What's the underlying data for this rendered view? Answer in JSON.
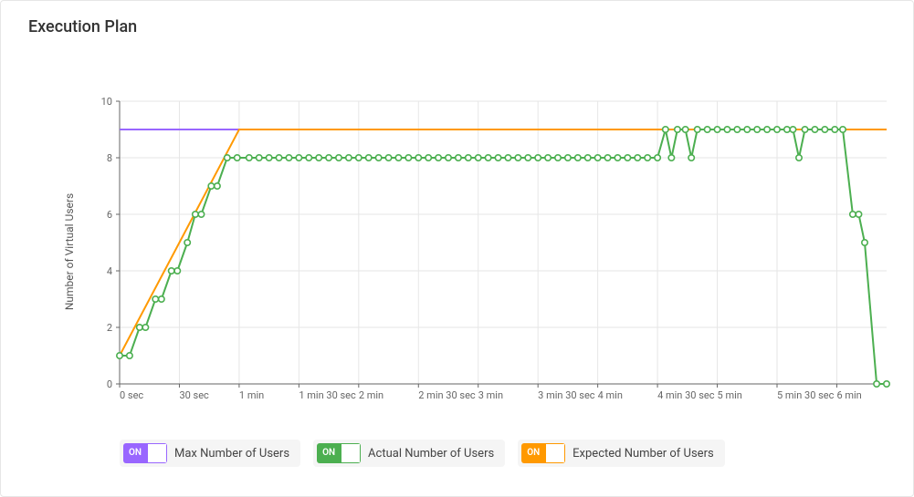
{
  "title": "Execution Plan",
  "ylabel": "Number of Virtual Users",
  "chart": {
    "type": "line",
    "background_color": "#ffffff",
    "grid_color": "#e6e6e6",
    "axis_color": "#666666",
    "tick_fontsize": 11,
    "label_fontsize": 12,
    "x_max_seconds": 385,
    "xticks": [
      {
        "sec": 0,
        "label": "0 sec"
      },
      {
        "sec": 30,
        "label": "30 sec"
      },
      {
        "sec": 60,
        "label": "1 min"
      },
      {
        "sec": 90,
        "label": "1 min 30 sec"
      },
      {
        "sec": 120,
        "label": "2 min"
      },
      {
        "sec": 150,
        "label": "2 min 30 sec"
      },
      {
        "sec": 180,
        "label": "3 min"
      },
      {
        "sec": 210,
        "label": "3 min 30 sec"
      },
      {
        "sec": 240,
        "label": "4 min"
      },
      {
        "sec": 270,
        "label": "4 min 30 sec"
      },
      {
        "sec": 300,
        "label": "5 min"
      },
      {
        "sec": 330,
        "label": "5 min 30 sec"
      },
      {
        "sec": 360,
        "label": "6 min"
      }
    ],
    "ylim": [
      0,
      10
    ],
    "yticks": [
      0,
      2,
      4,
      6,
      8,
      10
    ],
    "series": {
      "max": {
        "label": "Max Number of Users",
        "color": "#9966ff",
        "line_width": 2,
        "markers": false,
        "points": [
          {
            "x": 0,
            "y": 9
          },
          {
            "x": 385,
            "y": 9
          }
        ]
      },
      "expected": {
        "label": "Expected Number of Users",
        "color": "#ff9900",
        "line_width": 2,
        "markers": false,
        "points": [
          {
            "x": 0,
            "y": 1
          },
          {
            "x": 60,
            "y": 9
          },
          {
            "x": 385,
            "y": 9
          }
        ]
      },
      "actual": {
        "label": "Actual Number of Users",
        "color": "#4caf50",
        "line_width": 2,
        "markers": true,
        "marker_radius": 3.2,
        "marker_fill": "#ffffff",
        "points": [
          {
            "x": 0,
            "y": 1
          },
          {
            "x": 5,
            "y": 1
          },
          {
            "x": 10,
            "y": 2
          },
          {
            "x": 13,
            "y": 2
          },
          {
            "x": 18,
            "y": 3
          },
          {
            "x": 21,
            "y": 3
          },
          {
            "x": 26,
            "y": 4
          },
          {
            "x": 29,
            "y": 4
          },
          {
            "x": 34,
            "y": 5
          },
          {
            "x": 38,
            "y": 6
          },
          {
            "x": 41,
            "y": 6
          },
          {
            "x": 46,
            "y": 7
          },
          {
            "x": 49,
            "y": 7
          },
          {
            "x": 54,
            "y": 8
          },
          {
            "x": 59,
            "y": 8
          },
          {
            "x": 65,
            "y": 8
          },
          {
            "x": 70,
            "y": 8
          },
          {
            "x": 75,
            "y": 8
          },
          {
            "x": 80,
            "y": 8
          },
          {
            "x": 85,
            "y": 8
          },
          {
            "x": 90,
            "y": 8
          },
          {
            "x": 95,
            "y": 8
          },
          {
            "x": 100,
            "y": 8
          },
          {
            "x": 105,
            "y": 8
          },
          {
            "x": 110,
            "y": 8
          },
          {
            "x": 115,
            "y": 8
          },
          {
            "x": 120,
            "y": 8
          },
          {
            "x": 125,
            "y": 8
          },
          {
            "x": 130,
            "y": 8
          },
          {
            "x": 135,
            "y": 8
          },
          {
            "x": 140,
            "y": 8
          },
          {
            "x": 145,
            "y": 8
          },
          {
            "x": 150,
            "y": 8
          },
          {
            "x": 155,
            "y": 8
          },
          {
            "x": 160,
            "y": 8
          },
          {
            "x": 165,
            "y": 8
          },
          {
            "x": 170,
            "y": 8
          },
          {
            "x": 175,
            "y": 8
          },
          {
            "x": 180,
            "y": 8
          },
          {
            "x": 185,
            "y": 8
          },
          {
            "x": 190,
            "y": 8
          },
          {
            "x": 195,
            "y": 8
          },
          {
            "x": 200,
            "y": 8
          },
          {
            "x": 205,
            "y": 8
          },
          {
            "x": 210,
            "y": 8
          },
          {
            "x": 215,
            "y": 8
          },
          {
            "x": 220,
            "y": 8
          },
          {
            "x": 225,
            "y": 8
          },
          {
            "x": 230,
            "y": 8
          },
          {
            "x": 235,
            "y": 8
          },
          {
            "x": 240,
            "y": 8
          },
          {
            "x": 245,
            "y": 8
          },
          {
            "x": 250,
            "y": 8
          },
          {
            "x": 255,
            "y": 8
          },
          {
            "x": 260,
            "y": 8
          },
          {
            "x": 265,
            "y": 8
          },
          {
            "x": 270,
            "y": 8
          },
          {
            "x": 274,
            "y": 9
          },
          {
            "x": 277,
            "y": 8
          },
          {
            "x": 280,
            "y": 9
          },
          {
            "x": 284,
            "y": 9
          },
          {
            "x": 287,
            "y": 8
          },
          {
            "x": 290,
            "y": 9
          },
          {
            "x": 295,
            "y": 9
          },
          {
            "x": 300,
            "y": 9
          },
          {
            "x": 305,
            "y": 9
          },
          {
            "x": 310,
            "y": 9
          },
          {
            "x": 315,
            "y": 9
          },
          {
            "x": 320,
            "y": 9
          },
          {
            "x": 325,
            "y": 9
          },
          {
            "x": 330,
            "y": 9
          },
          {
            "x": 335,
            "y": 9
          },
          {
            "x": 338,
            "y": 9
          },
          {
            "x": 341,
            "y": 8
          },
          {
            "x": 344,
            "y": 9
          },
          {
            "x": 349,
            "y": 9
          },
          {
            "x": 354,
            "y": 9
          },
          {
            "x": 359,
            "y": 9
          },
          {
            "x": 363,
            "y": 9
          },
          {
            "x": 368,
            "y": 6
          },
          {
            "x": 371,
            "y": 6
          },
          {
            "x": 374,
            "y": 5
          },
          {
            "x": 380,
            "y": 0
          },
          {
            "x": 385,
            "y": 0
          }
        ]
      }
    }
  },
  "legend": {
    "on_label": "ON",
    "items": [
      {
        "key": "max",
        "label": "Max Number of Users",
        "color": "#9966ff"
      },
      {
        "key": "actual",
        "label": "Actual Number of Users",
        "color": "#4caf50"
      },
      {
        "key": "expected",
        "label": "Expected Number of Users",
        "color": "#ff9900"
      }
    ]
  }
}
